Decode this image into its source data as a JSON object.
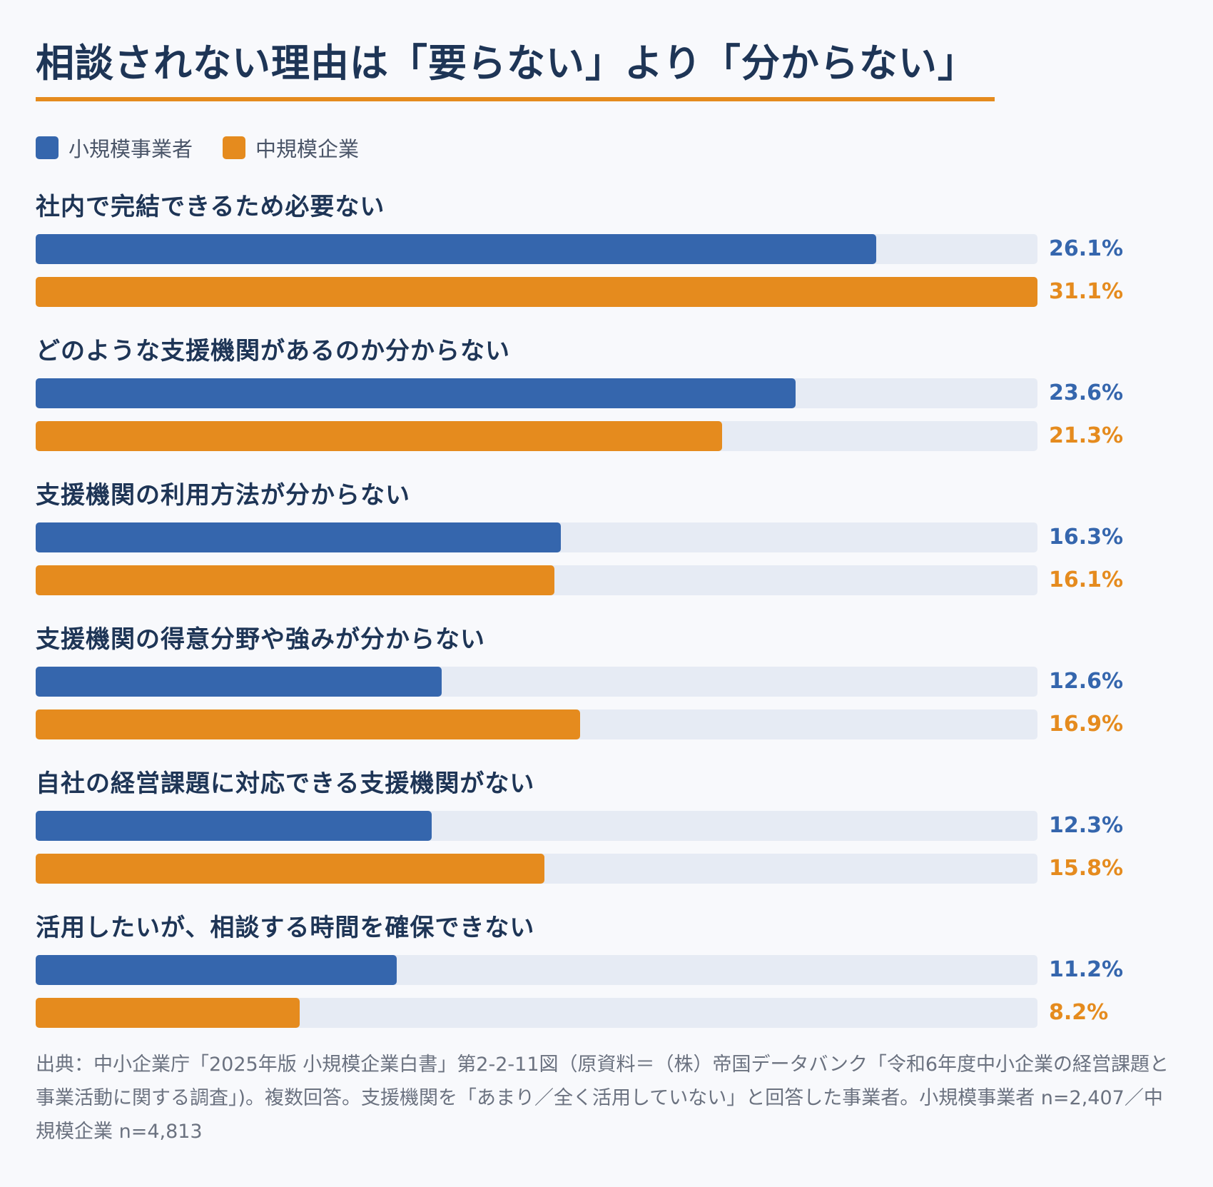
{
  "title": "相談されない理由は「要らない」より「分からない」",
  "legend": [
    {
      "label": "小規模事業者",
      "color": "#3566ad"
    },
    {
      "label": "中規模企業",
      "color": "#e58b1e"
    }
  ],
  "colors": {
    "accent": "#e58b1e",
    "track": "#e6ebf4",
    "title": "#1e3556"
  },
  "chart_data": {
    "type": "bar",
    "orientation": "horizontal",
    "categories": [
      "社内で完結できるため必要ない",
      "どのような支援機関があるのか分からない",
      "支援機関の利用方法が分からない",
      "支援機関の得意分野や強みが分からない",
      "自社の経営課題に対応できる支援機関がない",
      "活用したいが、相談する時間を確保できない"
    ],
    "series": [
      {
        "name": "小規模事業者",
        "color": "#3566ad",
        "values": [
          26.1,
          23.6,
          16.3,
          12.6,
          12.3,
          11.2
        ],
        "labels": [
          "26.1%",
          "23.6%",
          "16.3%",
          "12.6%",
          "12.3%",
          "11.2%"
        ]
      },
      {
        "name": "中規模企業",
        "color": "#e58b1e",
        "values": [
          31.1,
          21.3,
          16.1,
          16.9,
          15.8,
          8.2
        ],
        "labels": [
          "31.1%",
          "21.3%",
          "16.1%",
          "16.9%",
          "15.8%",
          "8.2%"
        ]
      }
    ],
    "xlim": [
      0,
      31.1
    ],
    "unit": "%",
    "grid": false,
    "legend_position": "top-left"
  },
  "source": "出典：中小企業庁「2025年版 小規模企業白書」第2-2-11図（原資料＝（株）帝国データバンク「令和6年度中小企業の経営課題と事業活動に関する調査」)。複数回答。支援機関を「あまり／全く活用していない」と回答した事業者。小規模事業者 n=2,407／中規模企業 n=4,813"
}
